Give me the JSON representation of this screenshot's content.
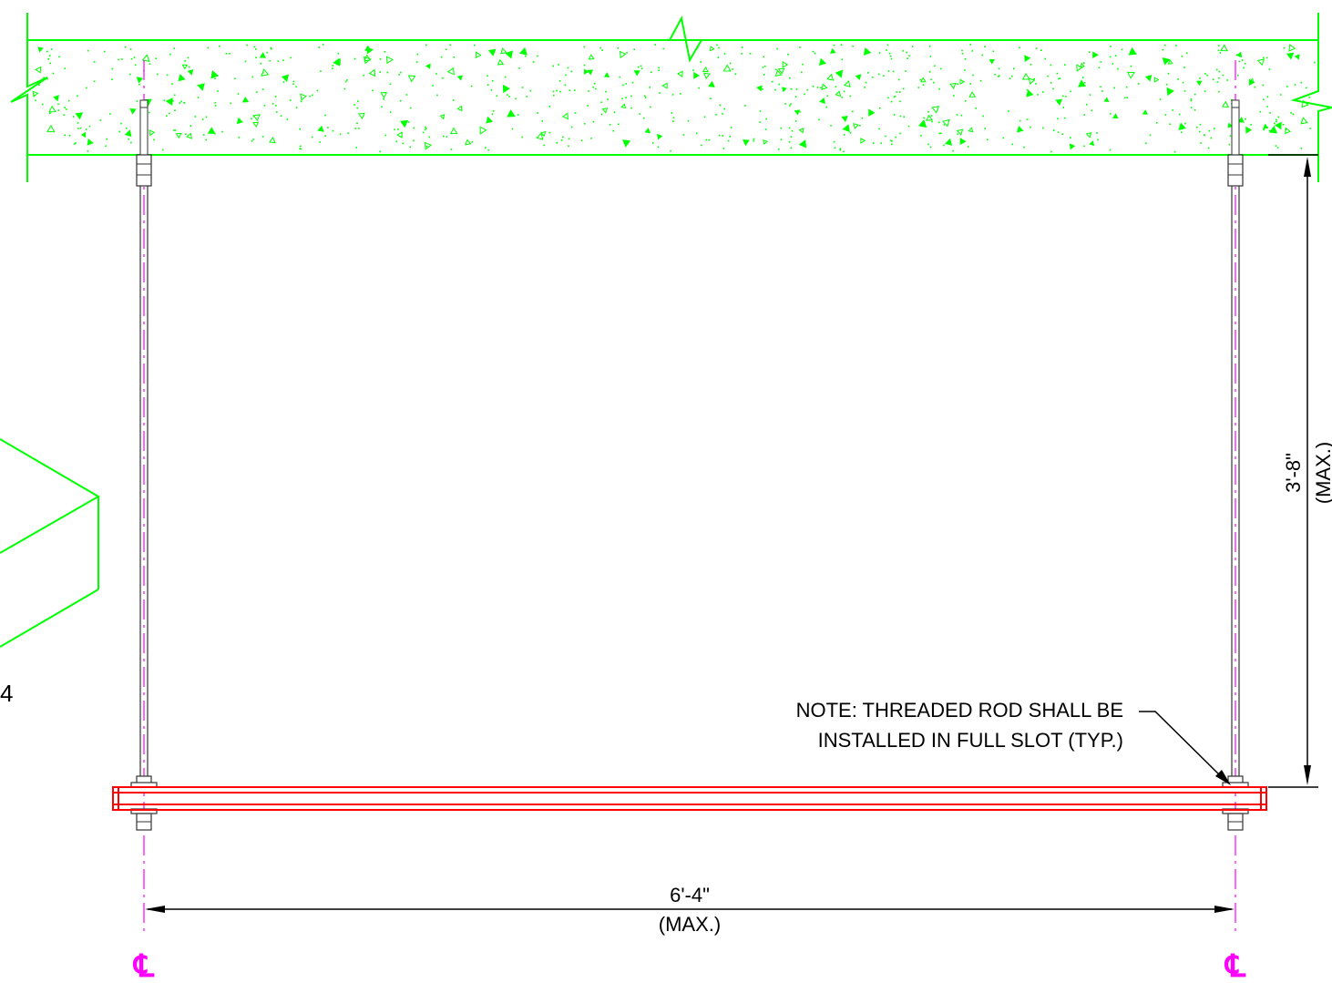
{
  "colors": {
    "background": "#ffffff",
    "slab": "#00ff00",
    "channel": "#ff0000",
    "centerline": "#ff00ff",
    "rod": "#333333",
    "dimension": "#000000"
  },
  "partial_label": "4",
  "note": {
    "line1": "NOTE: THREADED ROD SHALL BE",
    "line2": "INSTALLED IN FULL SLOT (TYP.)"
  },
  "dim_height": {
    "value": "3'-8\"",
    "qualifier": "(MAX.)"
  },
  "dim_width": {
    "value": "6'-4\"",
    "qualifier": "(MAX.)"
  },
  "centerline_symbol": {
    "left": "℄",
    "right": "℄"
  }
}
